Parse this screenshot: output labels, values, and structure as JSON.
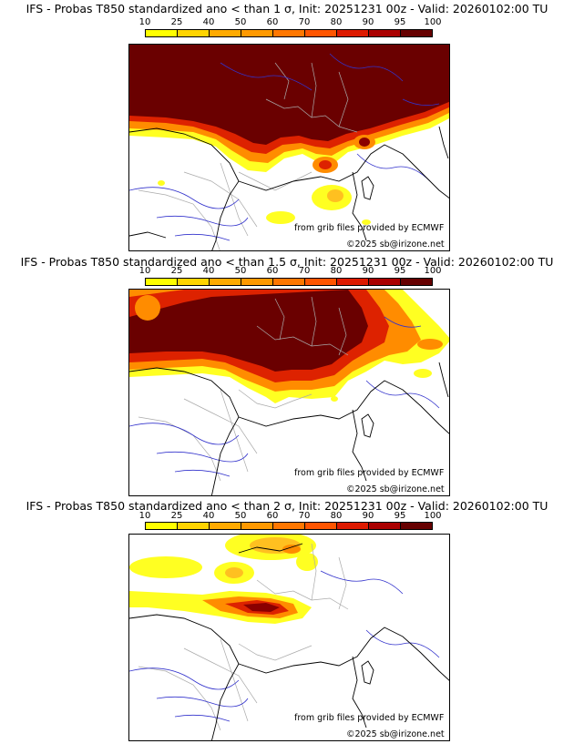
{
  "panels": [
    {
      "title": "IFS - Probas T850  standardized ano < than 1 σ, Init: 20251231 00z - Valid: 20260102:00 TU",
      "colorbar_ticks": [
        "10",
        "25",
        "40",
        "50",
        "60",
        "70",
        "80",
        "90",
        "95",
        "100"
      ],
      "source_credit": "from grib files provided by ECMWF",
      "copyright": "©2025 sb@irizone.net"
    },
    {
      "title": "IFS - Probas T850  standardized ano < than 1.5 σ, Init: 20251231 00z - Valid: 20260102:00 TU",
      "colorbar_ticks": [
        "10",
        "25",
        "40",
        "50",
        "60",
        "70",
        "80",
        "90",
        "95",
        "100"
      ],
      "source_credit": "from grib files provided by ECMWF",
      "copyright": "©2025 sb@irizone.net"
    },
    {
      "title": "IFS - Probas T850  standardized ano < than 2 σ, Init: 20251231 00z - Valid: 20260102:00 TU",
      "colorbar_ticks": [
        "10",
        "25",
        "40",
        "50",
        "60",
        "70",
        "80",
        "90",
        "95",
        "100"
      ],
      "source_credit": "from grib files provided by ECMWF",
      "copyright": "©2025 sb@irizone.net"
    }
  ],
  "colorbar_colors": [
    "#ffff00",
    "#ffd400",
    "#ffaa00",
    "#ff9900",
    "#ff7700",
    "#ff5500",
    "#dd1a00",
    "#aa0000",
    "#660000"
  ],
  "shading_colors": {
    "yellow": "#ffff22",
    "light_orange": "#ffc020",
    "orange": "#ff8c00",
    "red": "#dd2200",
    "dark_red": "#8b0000",
    "very_dark_red": "#6a0000"
  },
  "map_line_colors": {
    "coast": "#000000",
    "borders": "#aaaaaa",
    "rivers": "#3333cc"
  }
}
